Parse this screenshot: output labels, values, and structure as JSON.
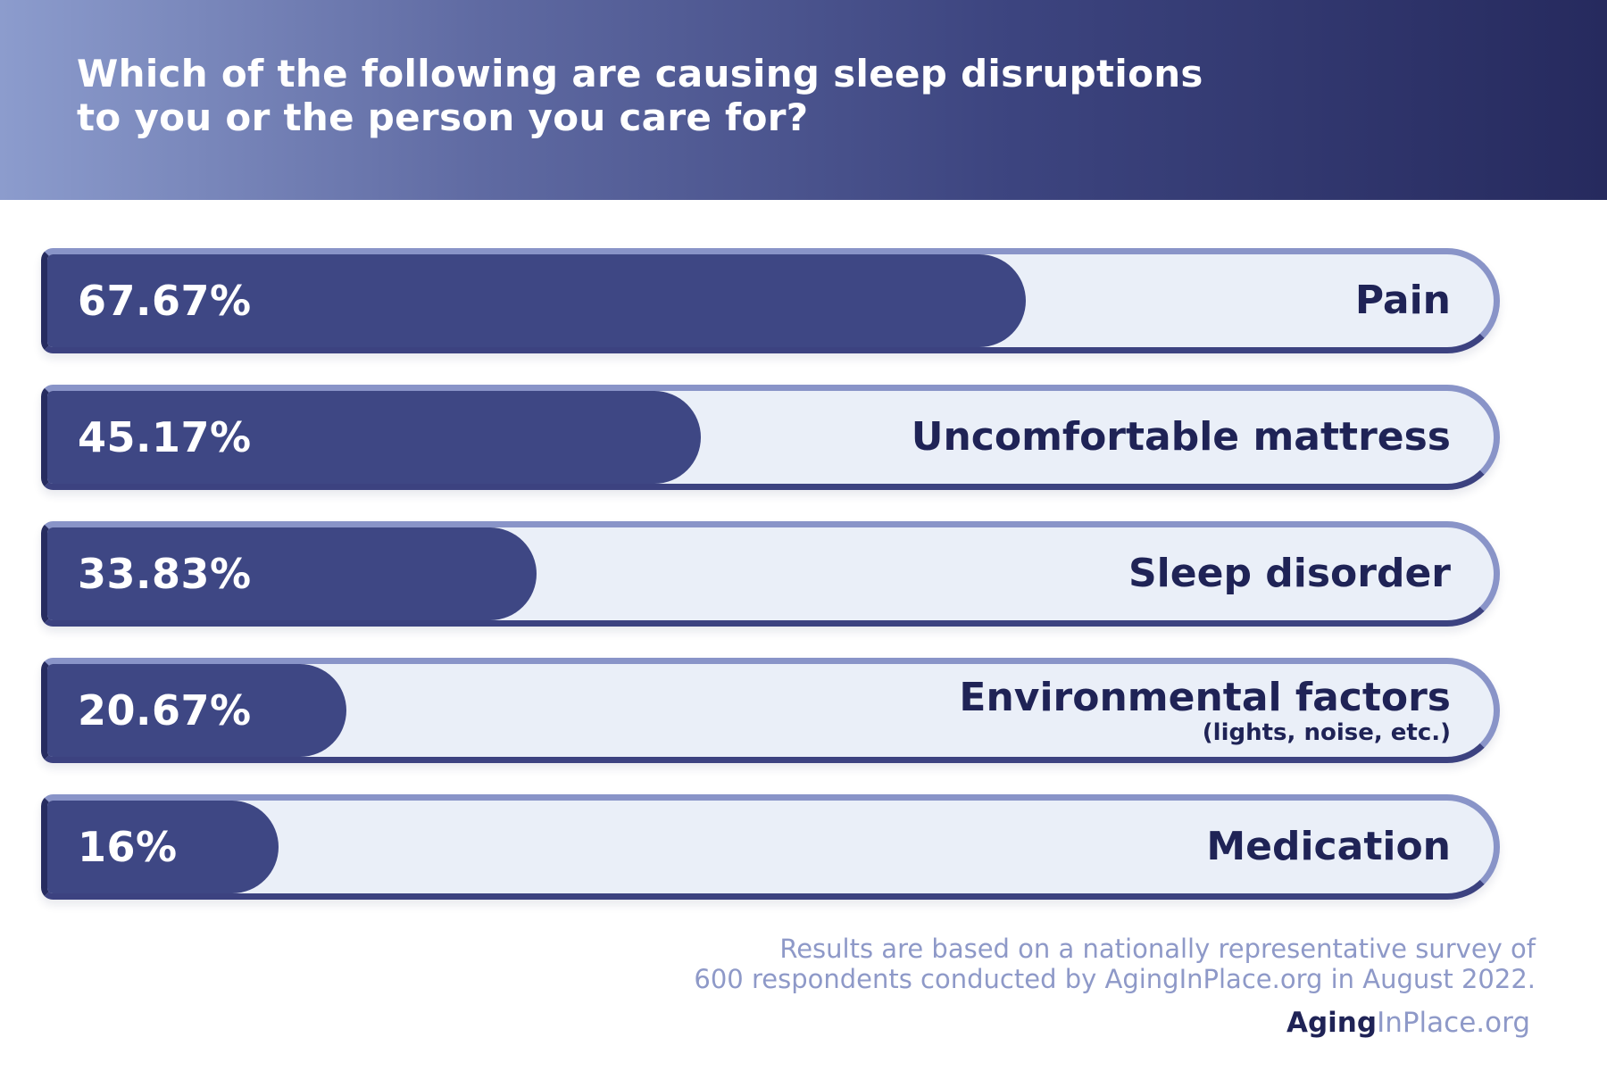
{
  "header": {
    "title_line1": "Which of the following are causing sleep disruptions",
    "title_line2": "to you or the person you care for?"
  },
  "chart_data": {
    "type": "bar",
    "orientation": "horizontal",
    "title": "Which of the following are causing sleep disruptions to you or the person you care for?",
    "unit": "%",
    "xlim": [
      0,
      100
    ],
    "grid": false,
    "categories": [
      "Pain",
      "Uncomfortable mattress",
      "Sleep disorder",
      "Environmental factors",
      "Medication"
    ],
    "sublabels": [
      "",
      "",
      "",
      "(lights, noise, etc.)",
      ""
    ],
    "values": [
      67.67,
      45.17,
      33.83,
      20.67,
      16
    ],
    "value_labels": [
      "67.67%",
      "45.17%",
      "33.83%",
      "20.67%",
      "16%"
    ],
    "colors": {
      "fill": "#3e4784",
      "track": "#eaeff8",
      "track_border": "#8994c8"
    }
  },
  "footer": {
    "note_line1": "Results are based on a nationally representative survey of",
    "note_line2": "600 respondents conducted by AgingInPlace.org in August 2022.",
    "brand_part1": "Aging",
    "brand_part2": "InPlace",
    "brand_part3": ".org"
  }
}
